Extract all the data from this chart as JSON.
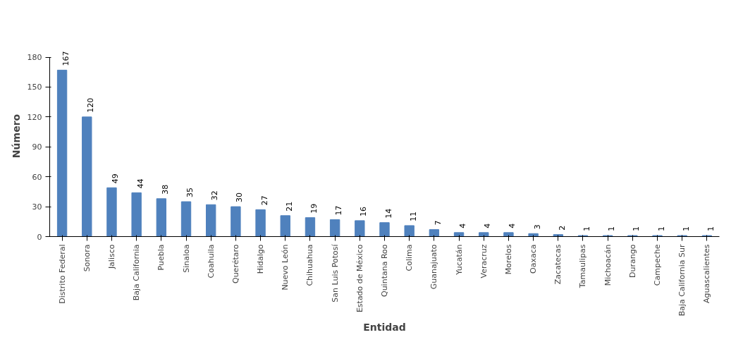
{
  "chart_data": {
    "type": "bar",
    "xlabel": "Entidad",
    "ylabel": "Número",
    "categories": [
      "Distrito Federal",
      "Sonora",
      "Jalisco",
      "Baja California",
      "Puebla",
      "Sinaloa",
      "Coahuila",
      "Querétaro",
      "Hidalgo",
      "Nuevo León",
      "Chihuahua",
      "San Luis Potosí",
      "Estado de México",
      "Quintana Roo",
      "Colima",
      "Guanajuato",
      "Yucatán",
      "Veracruz",
      "Morelos",
      "Oaxaca",
      "Zacatecas",
      "Tamaulipas",
      "Michoacán",
      "Durango",
      "Campeche",
      "Baja California Sur",
      "Aguascalientes"
    ],
    "values": [
      167,
      120,
      49,
      44,
      38,
      35,
      32,
      30,
      27,
      21,
      19,
      17,
      16,
      14,
      11,
      7,
      4,
      4,
      4,
      3,
      2,
      1,
      1,
      1,
      1,
      1,
      1
    ],
    "color": "#4f81bd",
    "ylim": [
      0,
      180
    ],
    "yticks": [
      0,
      30,
      60,
      90,
      120,
      150,
      180
    ],
    "grid": false,
    "data_labels": true
  }
}
